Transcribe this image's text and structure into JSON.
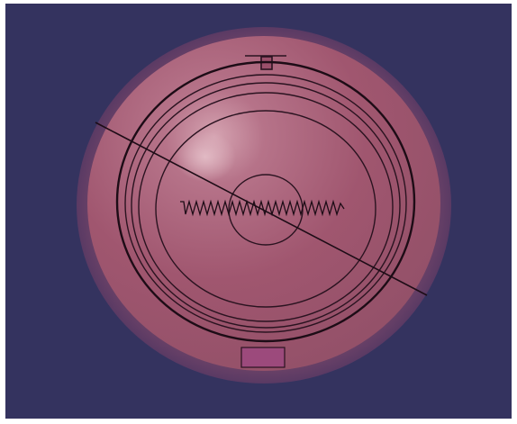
{
  "scene": {
    "background_color": "#34335f",
    "object_color": "#a45a73",
    "outline_color": "#2a1320",
    "highlight_color": "#d9aeb9",
    "transparent_overlay": true
  }
}
